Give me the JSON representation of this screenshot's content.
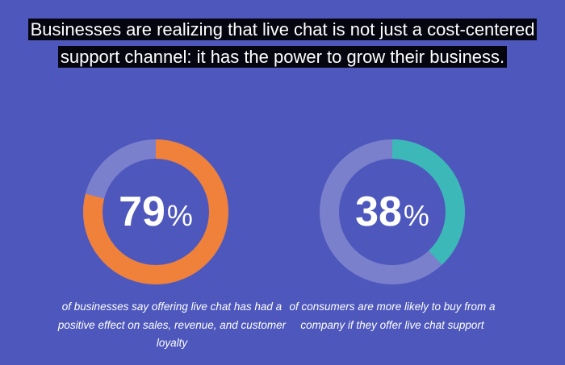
{
  "headline": "Businesses are realizing that live chat is not just a cost-centered support channel: it has the power to grow their business.",
  "colors": {
    "background": "#4d57bc",
    "track": "#7a80cc",
    "orange": "#f0813a",
    "teal": "#3cb8b8"
  },
  "chart_data": [
    {
      "type": "pie",
      "variant": "donut",
      "value": 79,
      "max": 100,
      "label": "79",
      "unit": "%",
      "color": "#f0813a",
      "caption": "of businesses say offering live chat has had a positive effect on sales, revenue, and customer loyalty"
    },
    {
      "type": "pie",
      "variant": "donut",
      "value": 38,
      "max": 100,
      "label": "38",
      "unit": "%",
      "color": "#3cb8b8",
      "caption": "of consumers are more likely to buy from a company if they offer live chat support"
    }
  ]
}
